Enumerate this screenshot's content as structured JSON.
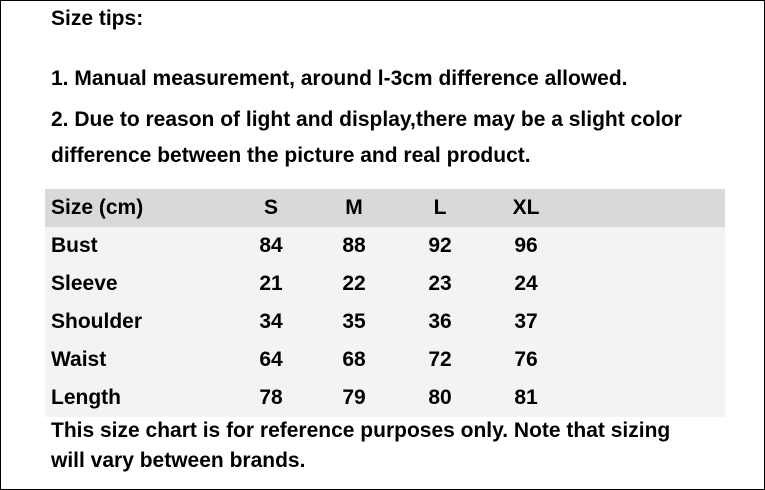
{
  "header": {
    "title": "Size tips:"
  },
  "notes": [
    "1. Manual measurement, around l-3cm difference allowed.",
    "2. Due to reason of light and display,there may be a slight color difference between the picture and real product."
  ],
  "table": {
    "header": [
      "Size (cm)",
      "S",
      "M",
      "L",
      "XL"
    ],
    "rows": [
      [
        "Bust",
        84,
        88,
        92,
        96
      ],
      [
        "Sleeve",
        21,
        22,
        23,
        24
      ],
      [
        "Shoulder",
        34,
        35,
        36,
        37
      ],
      [
        "Waist",
        64,
        68,
        72,
        76
      ],
      [
        "Length",
        78,
        79,
        80,
        81
      ]
    ]
  },
  "footer": "This size chart is for reference purposes only. Note that sizing will vary between brands."
}
